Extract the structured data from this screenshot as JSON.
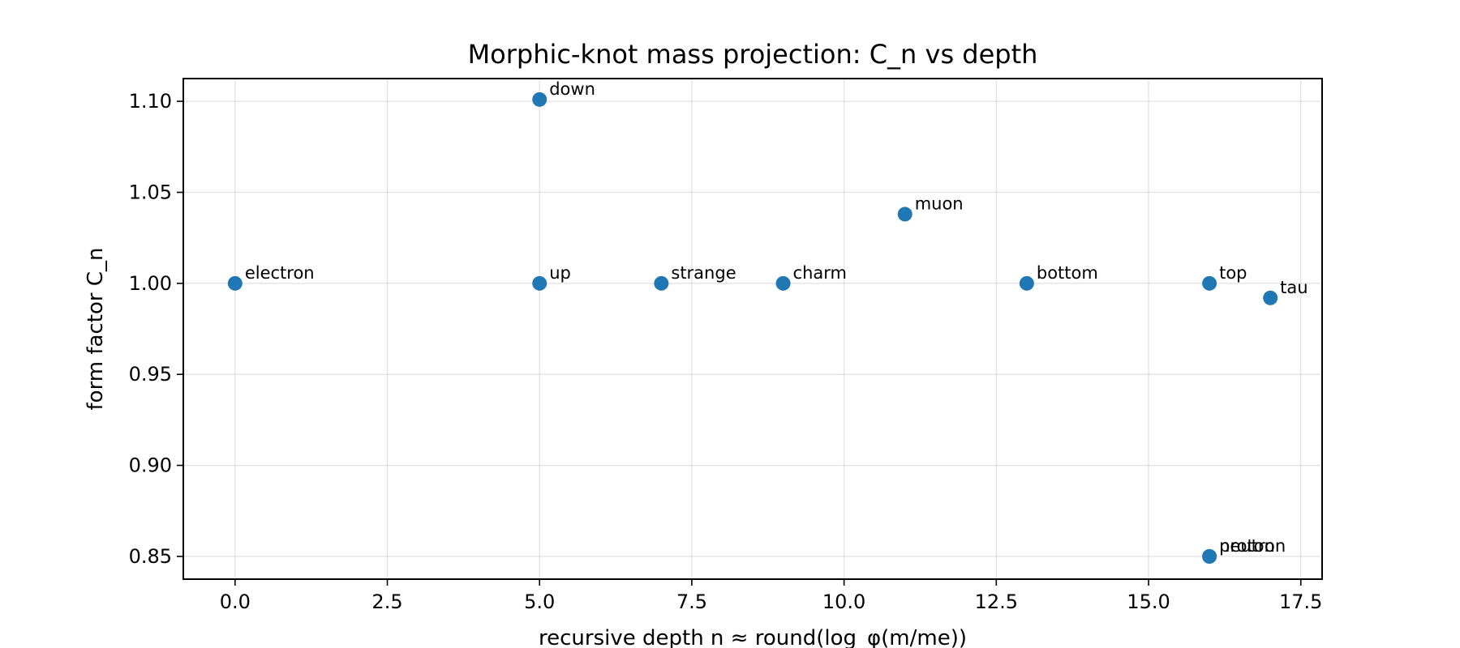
{
  "chart_data": {
    "type": "scatter",
    "title": "Morphic-knot mass projection: C_n vs depth",
    "xlabel": "recursive depth n ≈ round(log_φ(m/me))",
    "ylabel": "form factor C_n",
    "xlim": [
      -0.85,
      17.85
    ],
    "ylim": [
      0.8375,
      1.1125
    ],
    "xticks": [
      0.0,
      2.5,
      5.0,
      7.5,
      10.0,
      12.5,
      15.0,
      17.5
    ],
    "xtick_labels": [
      "0.0",
      "2.5",
      "5.0",
      "7.5",
      "10.0",
      "12.5",
      "15.0",
      "17.5"
    ],
    "yticks": [
      0.85,
      0.9,
      0.95,
      1.0,
      1.05,
      1.1
    ],
    "ytick_labels": [
      "0.85",
      "0.90",
      "0.95",
      "1.00",
      "1.05",
      "1.10"
    ],
    "grid": true,
    "marker_color": "#1f77b4",
    "points": [
      {
        "label": "electron",
        "x": 0,
        "y": 1.0
      },
      {
        "label": "down",
        "x": 5,
        "y": 1.101
      },
      {
        "label": "up",
        "x": 5,
        "y": 1.0
      },
      {
        "label": "strange",
        "x": 7,
        "y": 1.0
      },
      {
        "label": "charm",
        "x": 9,
        "y": 1.0
      },
      {
        "label": "muon",
        "x": 11,
        "y": 1.038
      },
      {
        "label": "bottom",
        "x": 13,
        "y": 1.0
      },
      {
        "label": "top",
        "x": 16,
        "y": 1.0
      },
      {
        "label": "tau",
        "x": 17,
        "y": 0.992
      },
      {
        "label": "proton",
        "x": 16,
        "y": 0.85
      },
      {
        "label": "neutron",
        "x": 16,
        "y": 0.85
      }
    ]
  }
}
